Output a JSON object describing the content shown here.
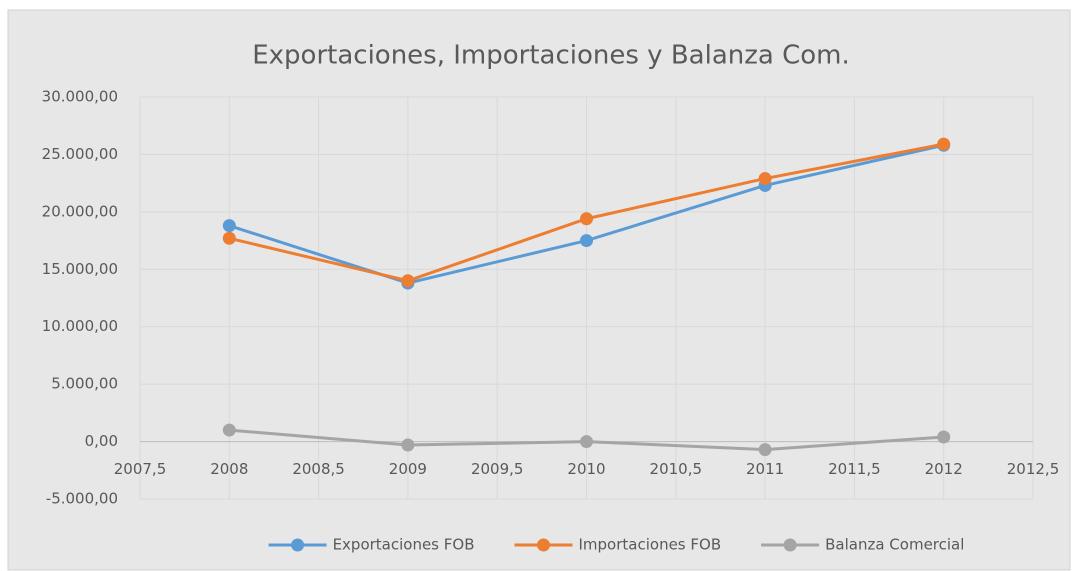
{
  "chart_data": {
    "type": "line",
    "title": "Exportaciones, Importaciones y Balanza Com.",
    "x": [
      2008,
      2009,
      2010,
      2011,
      2012
    ],
    "series": [
      {
        "name": "Exportaciones FOB",
        "color": "#5b9bd5",
        "values": [
          18800,
          13800,
          17500,
          22300,
          25800
        ]
      },
      {
        "name": "Importaciones FOB",
        "color": "#ed7d31",
        "values": [
          17700,
          14000,
          19400,
          22900,
          25900
        ]
      },
      {
        "name": "Balanza Comercial",
        "color": "#a5a5a5",
        "values": [
          1000,
          -300,
          0,
          -700,
          400
        ]
      }
    ],
    "xlim": [
      2007.5,
      2012.5
    ],
    "xticks": [
      {
        "value": 2007.5,
        "label": "2007,5"
      },
      2008,
      {
        "value": 2008.5,
        "label": "2008,5"
      },
      2009,
      {
        "value": 2009.5,
        "label": "2009,5"
      },
      2010,
      {
        "value": 2010.5,
        "label": "2010,5"
      },
      2011,
      {
        "value": 2011.5,
        "label": "2011,5"
      },
      2012,
      {
        "value": 2012.5,
        "label": "2012,5"
      }
    ],
    "ylim": [
      -5000,
      30000
    ],
    "yticks": [
      {
        "value": -5000,
        "label": "-5.000,00"
      },
      {
        "value": 0,
        "label": "0,00"
      },
      {
        "value": 5000,
        "label": "5.000,00"
      },
      {
        "value": 10000,
        "label": "10.000,00"
      },
      {
        "value": 15000,
        "label": "15.000,00"
      },
      {
        "value": 20000,
        "label": "20.000,00"
      },
      {
        "value": 25000,
        "label": "25.000,00"
      },
      {
        "value": 30000,
        "label": "30.000,00"
      }
    ],
    "grid": true,
    "legend": "bottom"
  }
}
